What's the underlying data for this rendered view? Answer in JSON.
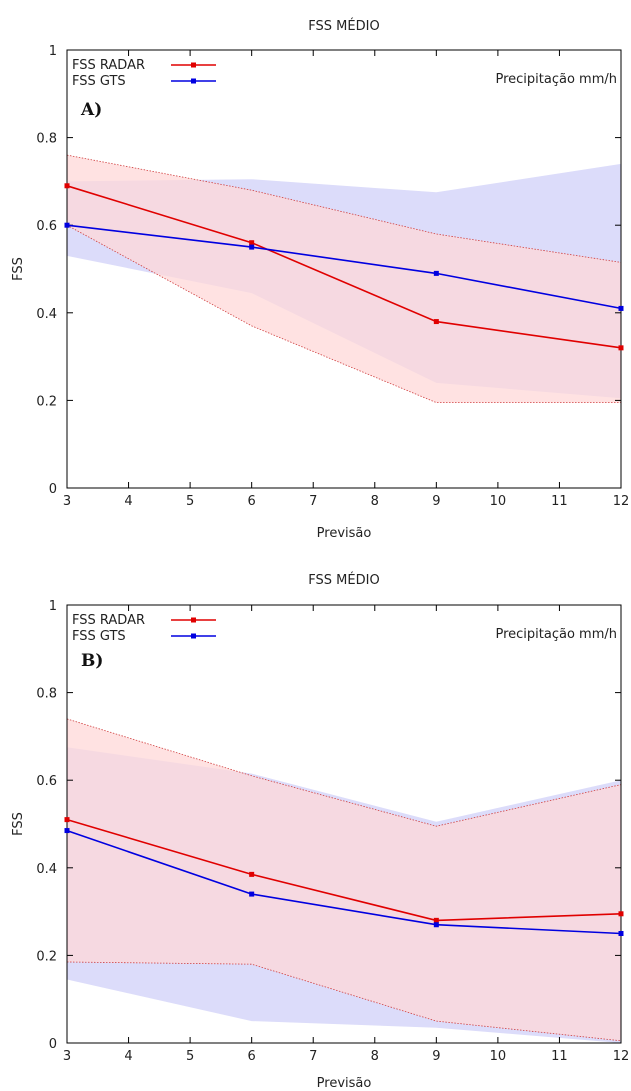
{
  "chart_data": [
    {
      "type": "line",
      "title": "FSS MÉDIO",
      "xlabel": "Previsão",
      "ylabel": "FSS",
      "xlim": [
        3,
        12
      ],
      "ylim": [
        0,
        1
      ],
      "xticks": [
        3,
        4,
        5,
        6,
        7,
        8,
        9,
        10,
        11,
        12
      ],
      "yticks": [
        0,
        0.2,
        0.4,
        0.6,
        0.8,
        1
      ],
      "ytick_labels": [
        "0",
        "0.2",
        "0.4",
        "0.6",
        "0.8",
        "1"
      ],
      "grid": false,
      "legend_position": "top-left",
      "annotation": "Precipitação mm/h",
      "panel_label": "A)",
      "x": [
        3,
        6,
        9,
        12
      ],
      "series": [
        {
          "name": "FSS RADAR",
          "color": "#e00000",
          "values": [
            0.69,
            0.56,
            0.38,
            0.32
          ],
          "band_lower": [
            0.6,
            0.37,
            0.195,
            0.195
          ],
          "band_upper": [
            0.76,
            0.68,
            0.58,
            0.515
          ],
          "band_color": "#ffd8d8"
        },
        {
          "name": "FSS GTS",
          "color": "#0000e0",
          "values": [
            0.6,
            0.55,
            0.49,
            0.41
          ],
          "band_lower": [
            0.53,
            0.445,
            0.24,
            0.205
          ],
          "band_upper": [
            0.7,
            0.705,
            0.675,
            0.74
          ],
          "band_color": "#dcdcfa"
        }
      ]
    },
    {
      "type": "line",
      "title": "FSS MÉDIO",
      "xlabel": "Previsão",
      "ylabel": "FSS",
      "xlim": [
        3,
        12
      ],
      "ylim": [
        0,
        1
      ],
      "xticks": [
        3,
        4,
        5,
        6,
        7,
        8,
        9,
        10,
        11,
        12
      ],
      "yticks": [
        0,
        0.2,
        0.4,
        0.6,
        0.8,
        1
      ],
      "ytick_labels": [
        "0",
        "0.2",
        "0.4",
        "0.6",
        "0.8",
        "1"
      ],
      "grid": false,
      "legend_position": "top-left",
      "annotation": "Precipitação mm/h",
      "panel_label": "B)",
      "x": [
        3,
        6,
        9,
        12
      ],
      "series": [
        {
          "name": "FSS RADAR",
          "color": "#e00000",
          "values": [
            0.51,
            0.385,
            0.28,
            0.295
          ],
          "band_lower": [
            0.185,
            0.18,
            0.05,
            0.005
          ],
          "band_upper": [
            0.74,
            0.61,
            0.495,
            0.59
          ],
          "band_color": "#ffd8d8"
        },
        {
          "name": "FSS GTS",
          "color": "#0000e0",
          "values": [
            0.485,
            0.34,
            0.27,
            0.25
          ],
          "band_lower": [
            0.145,
            0.05,
            0.035,
            0.0
          ],
          "band_upper": [
            0.675,
            0.615,
            0.505,
            0.6
          ],
          "band_color": "#dcdcfa"
        }
      ]
    }
  ]
}
